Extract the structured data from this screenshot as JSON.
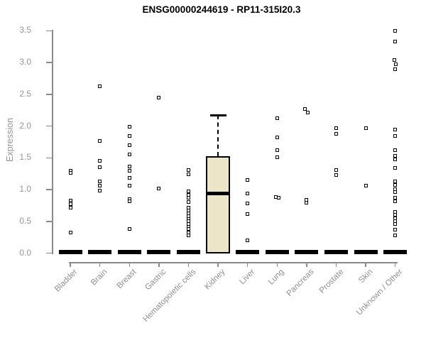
{
  "chart_data": {
    "type": "scatter",
    "subtype": "strip-plot-with-boxplot",
    "title": "ENSG00000244619 - RP11-315I20.3",
    "ylabel": "Expression",
    "xlabel": "",
    "ylim": [
      0.0,
      3.5
    ],
    "ytick_labels": [
      "0.0",
      "0.5",
      "1.0",
      "1.5",
      "2.0",
      "2.5",
      "3.0",
      "3.5"
    ],
    "grid": false,
    "legend": "none",
    "colors": {
      "point": "#000000",
      "box_fill": "#ECE5C8",
      "box_border": "#000000",
      "zero_bar": "#000000",
      "axis": "#8a8a8a",
      "tick_label": "#969696",
      "title": "#000000",
      "background": "#ffffff"
    },
    "note": "All categories except Kidney show a thick black median bar at 0; Kidney shows a filled boxplot. Small open-square markers are individual sample expression values.",
    "categories": [
      {
        "label": "Bladder",
        "zero_bar": true,
        "points": [
          1.3,
          1.27,
          0.83,
          0.8,
          0.77,
          0.72,
          0.33
        ]
      },
      {
        "label": "Brain",
        "zero_bar": true,
        "points": [
          2.63,
          1.77,
          1.46,
          1.35,
          1.13,
          1.06,
          0.98
        ]
      },
      {
        "label": "Breast",
        "zero_bar": true,
        "points": [
          1.99,
          1.84,
          1.7,
          1.55,
          1.36,
          1.3,
          1.19,
          1.06,
          0.85,
          0.82,
          0.38
        ]
      },
      {
        "label": "Gastric",
        "zero_bar": true,
        "points": [
          2.45,
          1.02
        ]
      },
      {
        "label": "Hematopoietic cells",
        "zero_bar": true,
        "points": [
          1.31,
          1.24,
          0.97,
          0.92,
          0.87,
          0.81,
          0.72,
          0.67,
          0.63,
          0.58,
          0.54,
          0.5,
          0.46,
          0.42,
          0.38,
          0.33,
          0.28
        ]
      },
      {
        "label": "Kidney",
        "zero_bar": false,
        "points": [],
        "box": {
          "median": 0.94,
          "q1": 0.0,
          "q3": 1.53,
          "whisker_low": 0.0,
          "whisker_high": 2.17
        }
      },
      {
        "label": "Liver",
        "zero_bar": true,
        "points": [
          1.15,
          0.94,
          0.78,
          0.62,
          0.2
        ]
      },
      {
        "label": "Lung",
        "zero_bar": true,
        "points": [
          2.13,
          1.82,
          1.62,
          1.51,
          {
            "v": 0.88,
            "dx": -2
          },
          {
            "v": 0.87,
            "dx": 2
          }
        ]
      },
      {
        "label": "Pancreas",
        "zero_bar": true,
        "points": [
          {
            "v": 2.27,
            "dx": -2
          },
          {
            "v": 2.21,
            "dx": 2
          },
          0.84,
          0.8
        ]
      },
      {
        "label": "Prostate",
        "zero_bar": true,
        "points": [
          1.97,
          1.88,
          1.31,
          1.23
        ]
      },
      {
        "label": "Skin",
        "zero_bar": true,
        "points": [
          1.97,
          1.06
        ]
      },
      {
        "label": "Unknown / Other",
        "zero_bar": true,
        "points": [
          3.5,
          3.33,
          {
            "v": 3.04,
            "dx": -1
          },
          {
            "v": 2.97,
            "dx": 1
          },
          2.9,
          1.95,
          1.84,
          1.62,
          1.53,
          1.48,
          1.34,
          1.13,
          1.08,
          1.01,
          0.96,
          0.87,
          0.82,
          0.65,
          0.6,
          0.55,
          0.5,
          0.46,
          0.37,
          0.28
        ]
      }
    ]
  }
}
